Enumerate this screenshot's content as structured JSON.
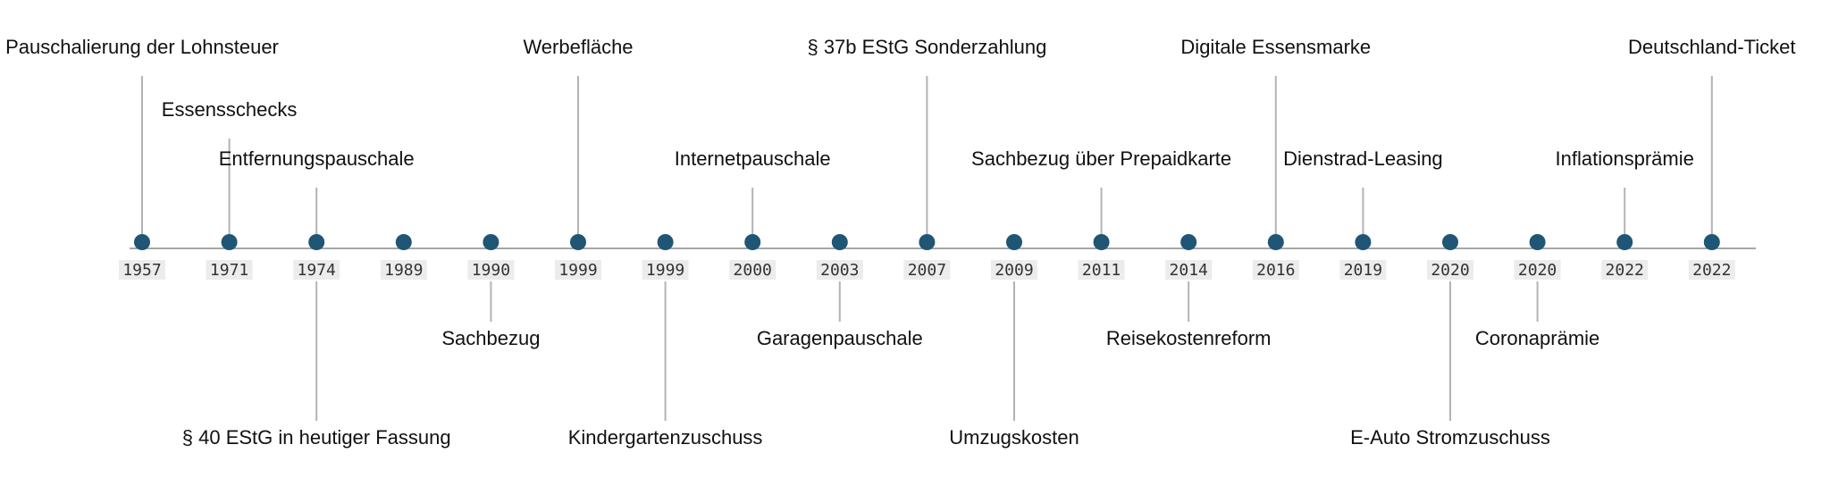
{
  "timeline": {
    "colors": {
      "marker": "#1f5575",
      "axis": "#a6a6a6",
      "stem": "#b3b3b3",
      "year_bg": "#ececec",
      "text": "#111111"
    },
    "events": [
      {
        "year": "1957",
        "label": "Pauschalierung der Lohnsteuer",
        "side": "above",
        "level": 3
      },
      {
        "year": "1971",
        "label": "Essensschecks",
        "side": "above",
        "level": 2
      },
      {
        "year": "1974",
        "label": "Entfernungspauschale",
        "side": "above",
        "level": 1
      },
      {
        "year": "1974",
        "label": "§ 40 EStG in heutiger Fassung",
        "side": "below",
        "level": 2,
        "marker": false
      },
      {
        "year": "1989",
        "label": "",
        "side": "above",
        "level": 0
      },
      {
        "year": "1990",
        "label": "Sachbezug",
        "side": "below",
        "level": 1
      },
      {
        "year": "1999",
        "label": "Werbefläche",
        "side": "above",
        "level": 3
      },
      {
        "year": "1999",
        "label": "Kindergartenzuschuss",
        "side": "below",
        "level": 2
      },
      {
        "year": "2000",
        "label": "Internetpauschale",
        "side": "above",
        "level": 1
      },
      {
        "year": "2003",
        "label": "Garagenpauschale",
        "side": "below",
        "level": 1
      },
      {
        "year": "2007",
        "label": "§ 37b EStG Sonderzahlung",
        "side": "above",
        "level": 3
      },
      {
        "year": "2009",
        "label": "Umzugskosten",
        "side": "below",
        "level": 2
      },
      {
        "year": "2011",
        "label": "Sachbezug über Prepaidkarte",
        "side": "above",
        "level": 1
      },
      {
        "year": "2014",
        "label": "Reisekostenreform",
        "side": "below",
        "level": 1
      },
      {
        "year": "2016",
        "label": "Digitale Essensmarke",
        "side": "above",
        "level": 3
      },
      {
        "year": "2019",
        "label": "Dienstrad-Leasing",
        "side": "above",
        "level": 1
      },
      {
        "year": "2020",
        "label": "E-Auto Stromzuschuss",
        "side": "below",
        "level": 2
      },
      {
        "year": "2020",
        "label": "Coronaprämie",
        "side": "below",
        "level": 1
      },
      {
        "year": "2022",
        "label": "Inflationsprämie",
        "side": "above",
        "level": 1
      },
      {
        "year": "2022",
        "label": "Deutschland-Ticket",
        "side": "above",
        "level": 3
      }
    ]
  }
}
